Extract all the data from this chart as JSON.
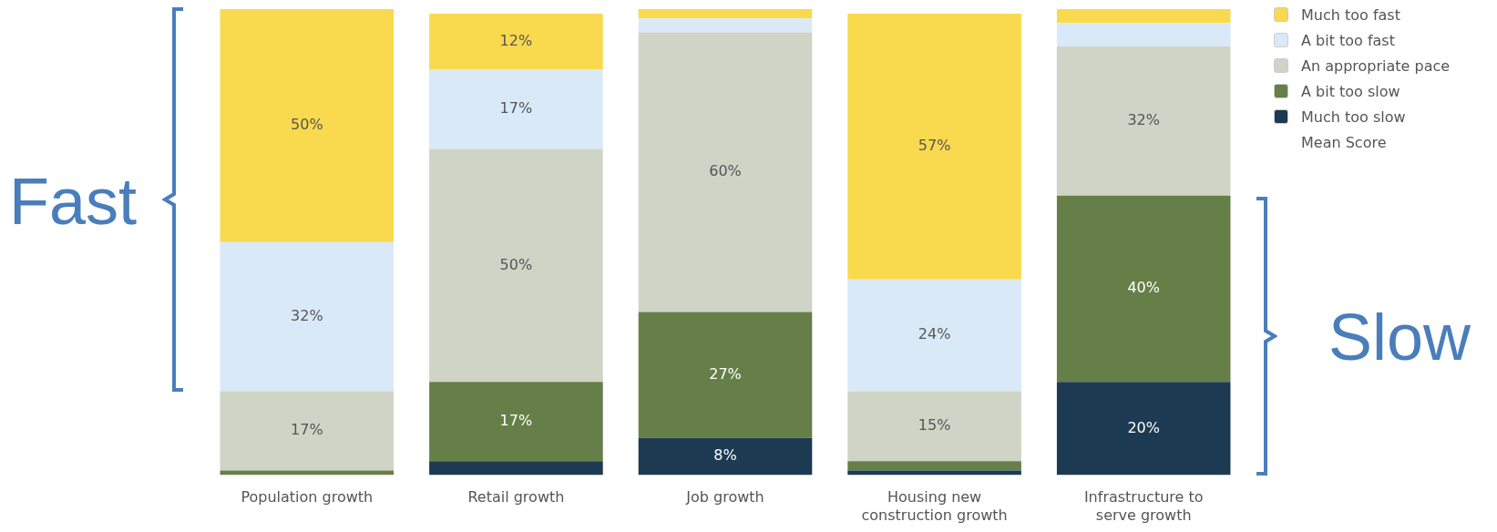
{
  "chart_data": {
    "type": "bar",
    "stacked": true,
    "categories": [
      "Population growth",
      "Retail growth",
      "Job growth",
      "Housing new construction growth",
      "Infrastructure to serve growth"
    ],
    "series": [
      {
        "name": "Much too slow",
        "color": "#1c3a52",
        "values": [
          0,
          3,
          8,
          1,
          20
        ],
        "value_labels": [
          null,
          null,
          "8%",
          null,
          "20%"
        ]
      },
      {
        "name": "A bit too slow",
        "color": "#667f48",
        "values": [
          1,
          17,
          27,
          2,
          40
        ],
        "value_labels": [
          null,
          "17%",
          "27%",
          null,
          "40%"
        ]
      },
      {
        "name": "An appropriate pace",
        "color": "#cfd4c6",
        "values": [
          17,
          50,
          60,
          15,
          32
        ],
        "value_labels": [
          "17%",
          "50%",
          "60%",
          "15%",
          "32%"
        ]
      },
      {
        "name": "A bit too fast",
        "color": "#dae9f7",
        "values": [
          32,
          17,
          3,
          24,
          5
        ],
        "value_labels": [
          "32%",
          "17%",
          null,
          "24%",
          null
        ]
      },
      {
        "name": "Much too fast",
        "color": "#f9d94e",
        "values": [
          50,
          12,
          2,
          57,
          3
        ],
        "value_labels": [
          "50%",
          "12%",
          null,
          "57%",
          null
        ]
      }
    ],
    "ylim": [
      0,
      100
    ],
    "tick_labels": "x",
    "legend": "top right",
    "annotations": [
      "Fast",
      "Slow",
      "Mean Score"
    ]
  }
}
